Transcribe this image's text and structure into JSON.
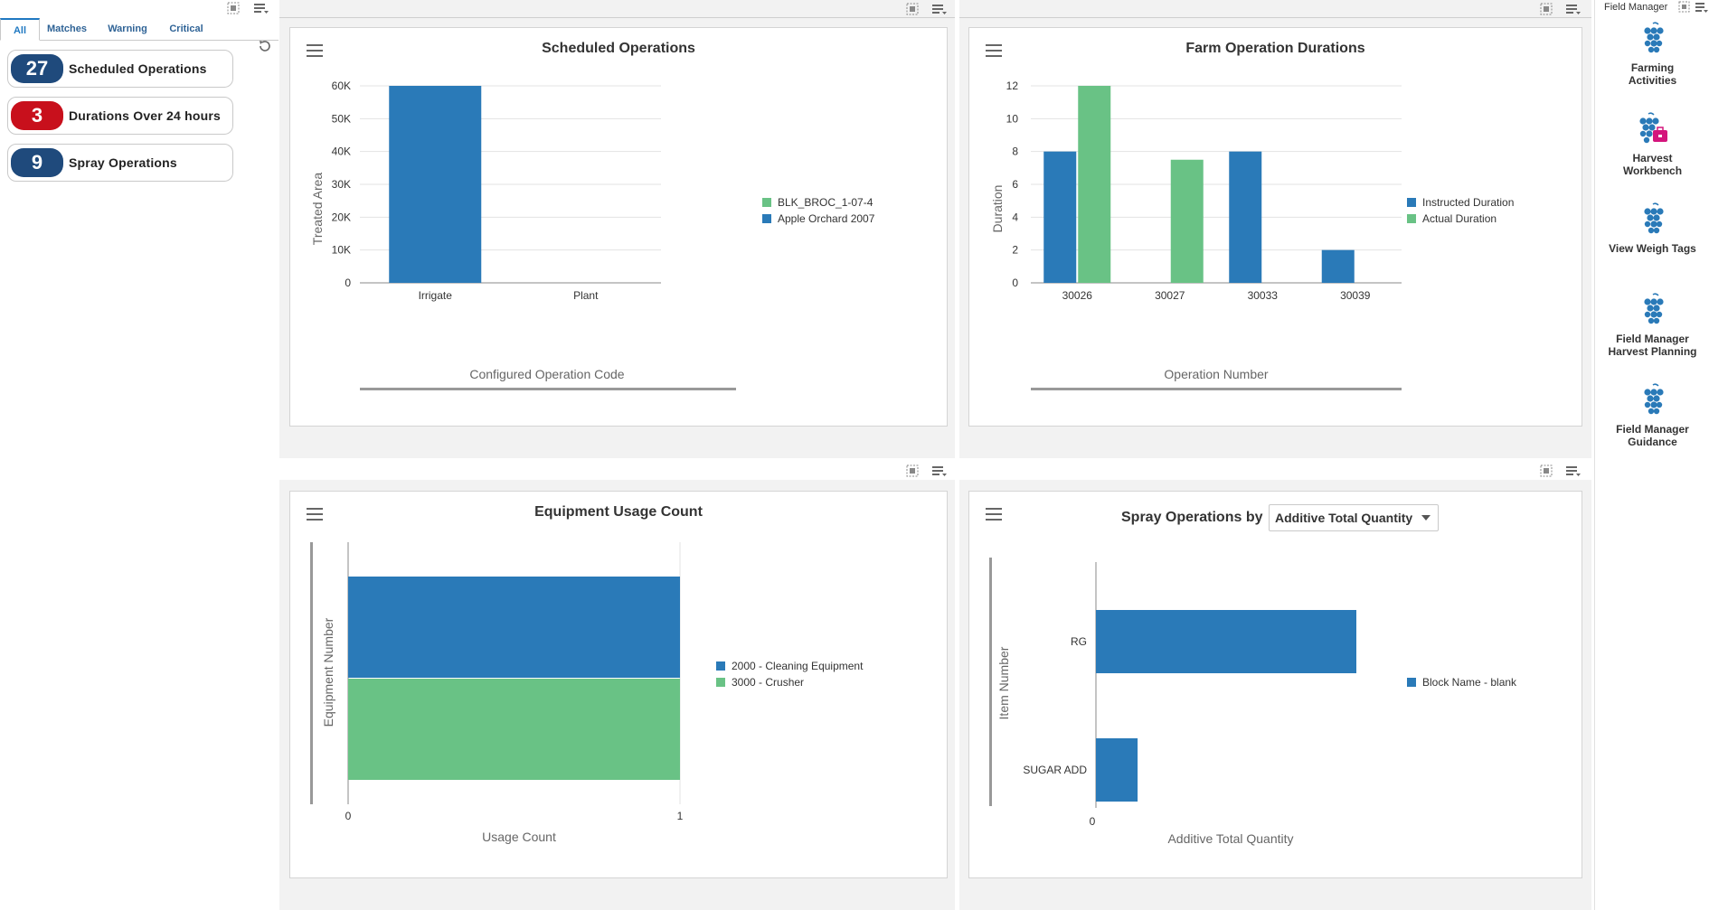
{
  "watchlist": {
    "tabs": [
      {
        "label": "All"
      },
      {
        "label": "Matches"
      },
      {
        "label": "Warning"
      },
      {
        "label": "Critical"
      }
    ],
    "items": [
      {
        "count": "27",
        "label": "Scheduled Operations",
        "color": "#1f4a7c"
      },
      {
        "count": "3",
        "label": "Durations Over 24 hours",
        "color": "#c8101c"
      },
      {
        "count": "9",
        "label": "Spray Operations",
        "color": "#1f4a7c"
      }
    ]
  },
  "colors": {
    "blue": "#2a7ab8",
    "green": "#69c285"
  },
  "charts": {
    "scheduled": {
      "title": "Scheduled Operations",
      "xlabel": "Configured Operation Code",
      "ylabel": "Treated Area",
      "yticks": [
        "0",
        "10K",
        "20K",
        "30K",
        "40K",
        "50K",
        "60K"
      ],
      "legend": [
        "BLK_BROC_1-07-4",
        "Apple Orchard 2007"
      ]
    },
    "durations": {
      "title": "Farm Operation Durations",
      "xlabel": "Operation Number",
      "ylabel": "Duration",
      "yticks": [
        "0",
        "2",
        "4",
        "6",
        "8",
        "10",
        "12"
      ],
      "legend": [
        "Instructed Duration",
        "Actual Duration"
      ]
    },
    "equipment": {
      "title": "Equipment Usage Count",
      "xlabel": "Usage Count",
      "ylabel": "Equipment Number",
      "xticks": [
        "0",
        "1"
      ],
      "legend": [
        "2000 - Cleaning Equipment",
        "3000 - Crusher"
      ]
    },
    "spray": {
      "title": "Spray Operations by",
      "dropdown": "Additive Total Quantity",
      "xlabel": "Additive Total Quantity",
      "ylabel": "Item Number",
      "xticks": [
        "0"
      ],
      "legend": [
        "Block Name - blank"
      ]
    }
  },
  "chart_data": [
    {
      "type": "bar",
      "title": "Scheduled Operations",
      "xlabel": "Configured Operation Code",
      "ylabel": "Treated Area",
      "categories": [
        "Irrigate",
        "Plant"
      ],
      "series": [
        {
          "name": "BLK_BROC_1-07-4",
          "values": [
            0,
            0
          ]
        },
        {
          "name": "Apple Orchard 2007",
          "values": [
            60000,
            0
          ]
        }
      ],
      "ylim": [
        0,
        60000
      ]
    },
    {
      "type": "bar",
      "title": "Farm Operation Durations",
      "xlabel": "Operation Number",
      "ylabel": "Duration",
      "categories": [
        "30026",
        "30027",
        "30033",
        "30039"
      ],
      "series": [
        {
          "name": "Instructed Duration",
          "values": [
            8,
            0,
            8,
            2
          ]
        },
        {
          "name": "Actual Duration",
          "values": [
            12,
            7.5,
            0,
            0
          ]
        }
      ],
      "ylim": [
        0,
        12
      ]
    },
    {
      "type": "bar",
      "title": "Equipment Usage Count",
      "xlabel": "Usage Count",
      "ylabel": "Equipment Number",
      "series": [
        {
          "name": "2000 - Cleaning Equipment",
          "values": [
            1
          ]
        },
        {
          "name": "3000 - Crusher",
          "values": [
            1
          ]
        }
      ],
      "xlim": [
        0,
        1
      ]
    },
    {
      "type": "bar",
      "title": "Spray Operations by Additive Total Quantity",
      "xlabel": "Additive Total Quantity",
      "ylabel": "Item Number",
      "categories": [
        "RG",
        "SUGAR ADD"
      ],
      "series": [
        {
          "name": "Block Name - blank",
          "values": [
            1,
            0.16
          ]
        }
      ]
    }
  ],
  "launch": {
    "title": "Field Manager",
    "apps": [
      {
        "line1": "Farming",
        "line2": "Activities"
      },
      {
        "line1": "Harvest",
        "line2": "Workbench"
      },
      {
        "line1": "View Weigh Tags",
        "line2": ""
      },
      {
        "line1": "Field Manager",
        "line2": "Harvest Planning"
      },
      {
        "line1": "Field Manager",
        "line2": "Guidance"
      }
    ]
  }
}
